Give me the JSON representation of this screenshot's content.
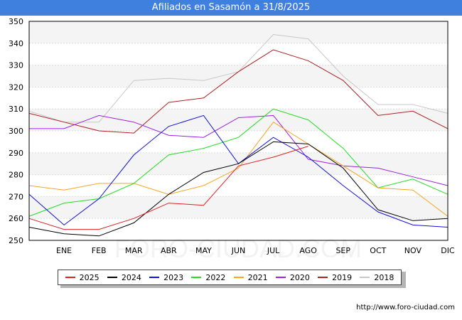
{
  "header": {
    "title": "Afiliados en Sasamón a 31/8/2025"
  },
  "footer": {
    "url": "http://www.foro-ciudad.com"
  },
  "watermark": "FORO-CIUDAD.COM",
  "chart_data": {
    "type": "line",
    "title": "Afiliados en Sasamón a 31/8/2025",
    "xlabel": "",
    "ylabel": "",
    "categories": [
      "",
      "ENE",
      "FEB",
      "MAR",
      "ABR",
      "MAY",
      "JUN",
      "JUL",
      "AGO",
      "SEP",
      "OCT",
      "NOV",
      "DIC"
    ],
    "ylim": [
      250,
      350
    ],
    "yticks": [
      250,
      260,
      270,
      280,
      290,
      300,
      310,
      320,
      330,
      340,
      350
    ],
    "grid": true,
    "legend_position": "bottom",
    "series": [
      {
        "name": "2025",
        "color": "#e02020",
        "values": [
          260,
          255,
          255,
          260,
          267,
          266,
          284,
          288,
          293,
          null,
          null,
          null,
          null
        ]
      },
      {
        "name": "2024",
        "color": "#000000",
        "values": [
          256,
          253,
          252,
          258,
          271,
          281,
          285,
          295,
          294,
          283,
          264,
          259,
          260
        ]
      },
      {
        "name": "2023",
        "color": "#1010e0",
        "values": [
          271,
          257,
          269,
          289,
          302,
          307,
          285,
          297,
          288,
          275,
          263,
          257,
          256
        ]
      },
      {
        "name": "2022",
        "color": "#22dd22",
        "values": [
          261,
          267,
          269,
          276,
          289,
          292,
          297,
          310,
          305,
          292,
          274,
          278,
          271
        ]
      },
      {
        "name": "2021",
        "color": "#f5a623",
        "values": [
          275,
          273,
          276,
          276,
          271,
          275,
          283,
          304,
          294,
          284,
          274,
          273,
          261
        ]
      },
      {
        "name": "2020",
        "color": "#a020e0",
        "values": [
          301,
          301,
          307,
          304,
          298,
          297,
          306,
          307,
          287,
          284,
          283,
          279,
          275
        ]
      },
      {
        "name": "2019",
        "color": "#b02020",
        "values": [
          308,
          304,
          300,
          299,
          313,
          315,
          327,
          337,
          332,
          323,
          307,
          309,
          301
        ]
      },
      {
        "name": "2018",
        "color": "#c8c8c8",
        "values": [
          309,
          304,
          304,
          323,
          324,
          323,
          327,
          344,
          342,
          325,
          312,
          312,
          308
        ]
      }
    ]
  }
}
